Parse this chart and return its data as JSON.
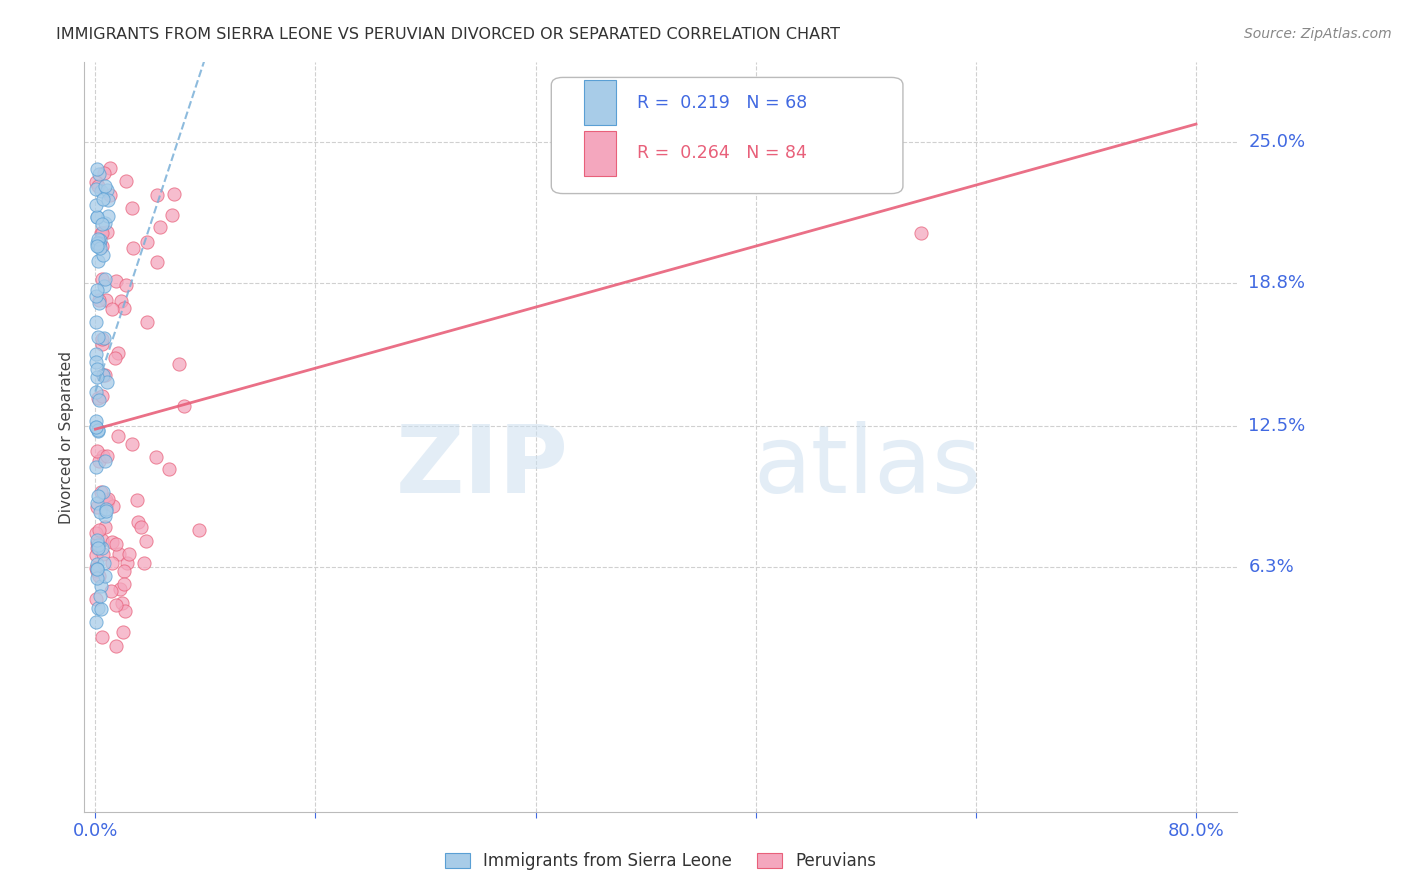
{
  "title": "IMMIGRANTS FROM SIERRA LEONE VS PERUVIAN DIVORCED OR SEPARATED CORRELATION CHART",
  "source": "Source: ZipAtlas.com",
  "ylabel": "Divorced or Separated",
  "ytick_vals": [
    0.063,
    0.125,
    0.188,
    0.25
  ],
  "ytick_labels": [
    "6.3%",
    "12.5%",
    "18.8%",
    "25.0%"
  ],
  "xtick_vals": [
    0.0,
    0.16,
    0.32,
    0.48,
    0.64,
    0.8
  ],
  "xtick_labels": [
    "0.0%",
    "",
    "",
    "",
    "",
    "80.0%"
  ],
  "xmin": -0.008,
  "xmax": 0.83,
  "ymin": -0.045,
  "ymax": 0.285,
  "color_blue_fill": "#a8cce8",
  "color_blue_edge": "#5a9fd4",
  "color_pink_fill": "#f4a7be",
  "color_pink_edge": "#e8607a",
  "color_blue_line": "#7ab0d8",
  "color_pink_line": "#e8607a",
  "color_axis_label": "#4169e1",
  "color_grid": "#d0d0d0",
  "color_title": "#333333",
  "color_source": "#888888",
  "color_legend_blue_r": "#4169e1",
  "color_legend_pink_r": "#e8607a",
  "legend_text1": "R =  0.219   N = 68",
  "legend_text2": "R =  0.264   N = 84",
  "watermark_zip": "ZIP",
  "watermark_atlas": "atlas",
  "bottom_legend_blue": "Immigrants from Sierra Leone",
  "bottom_legend_pink": "Peruvians"
}
